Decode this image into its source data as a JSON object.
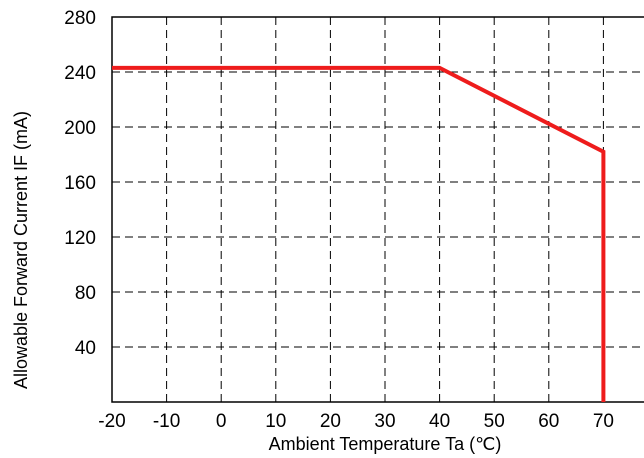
{
  "chart_data": {
    "type": "line",
    "title": "",
    "xlabel": "Ambient Temperature Ta (℃)",
    "ylabel": "Allowable Forward Current IF (mA)",
    "xlim": [
      -20,
      80
    ],
    "ylim": [
      0,
      280
    ],
    "x_ticks": [
      "-20",
      "-10",
      "0",
      "10",
      "20",
      "30",
      "40",
      "50",
      "60",
      "70"
    ],
    "y_ticks": [
      "40",
      "80",
      "120",
      "160",
      "200",
      "240",
      "280"
    ],
    "grid": true,
    "series": [
      {
        "color": "#ee1c1c",
        "points": [
          {
            "x": -20,
            "y": 243
          },
          {
            "x": 40,
            "y": 243
          },
          {
            "x": 70,
            "y": 182
          },
          {
            "x": 70,
            "y": 0
          }
        ]
      }
    ]
  }
}
